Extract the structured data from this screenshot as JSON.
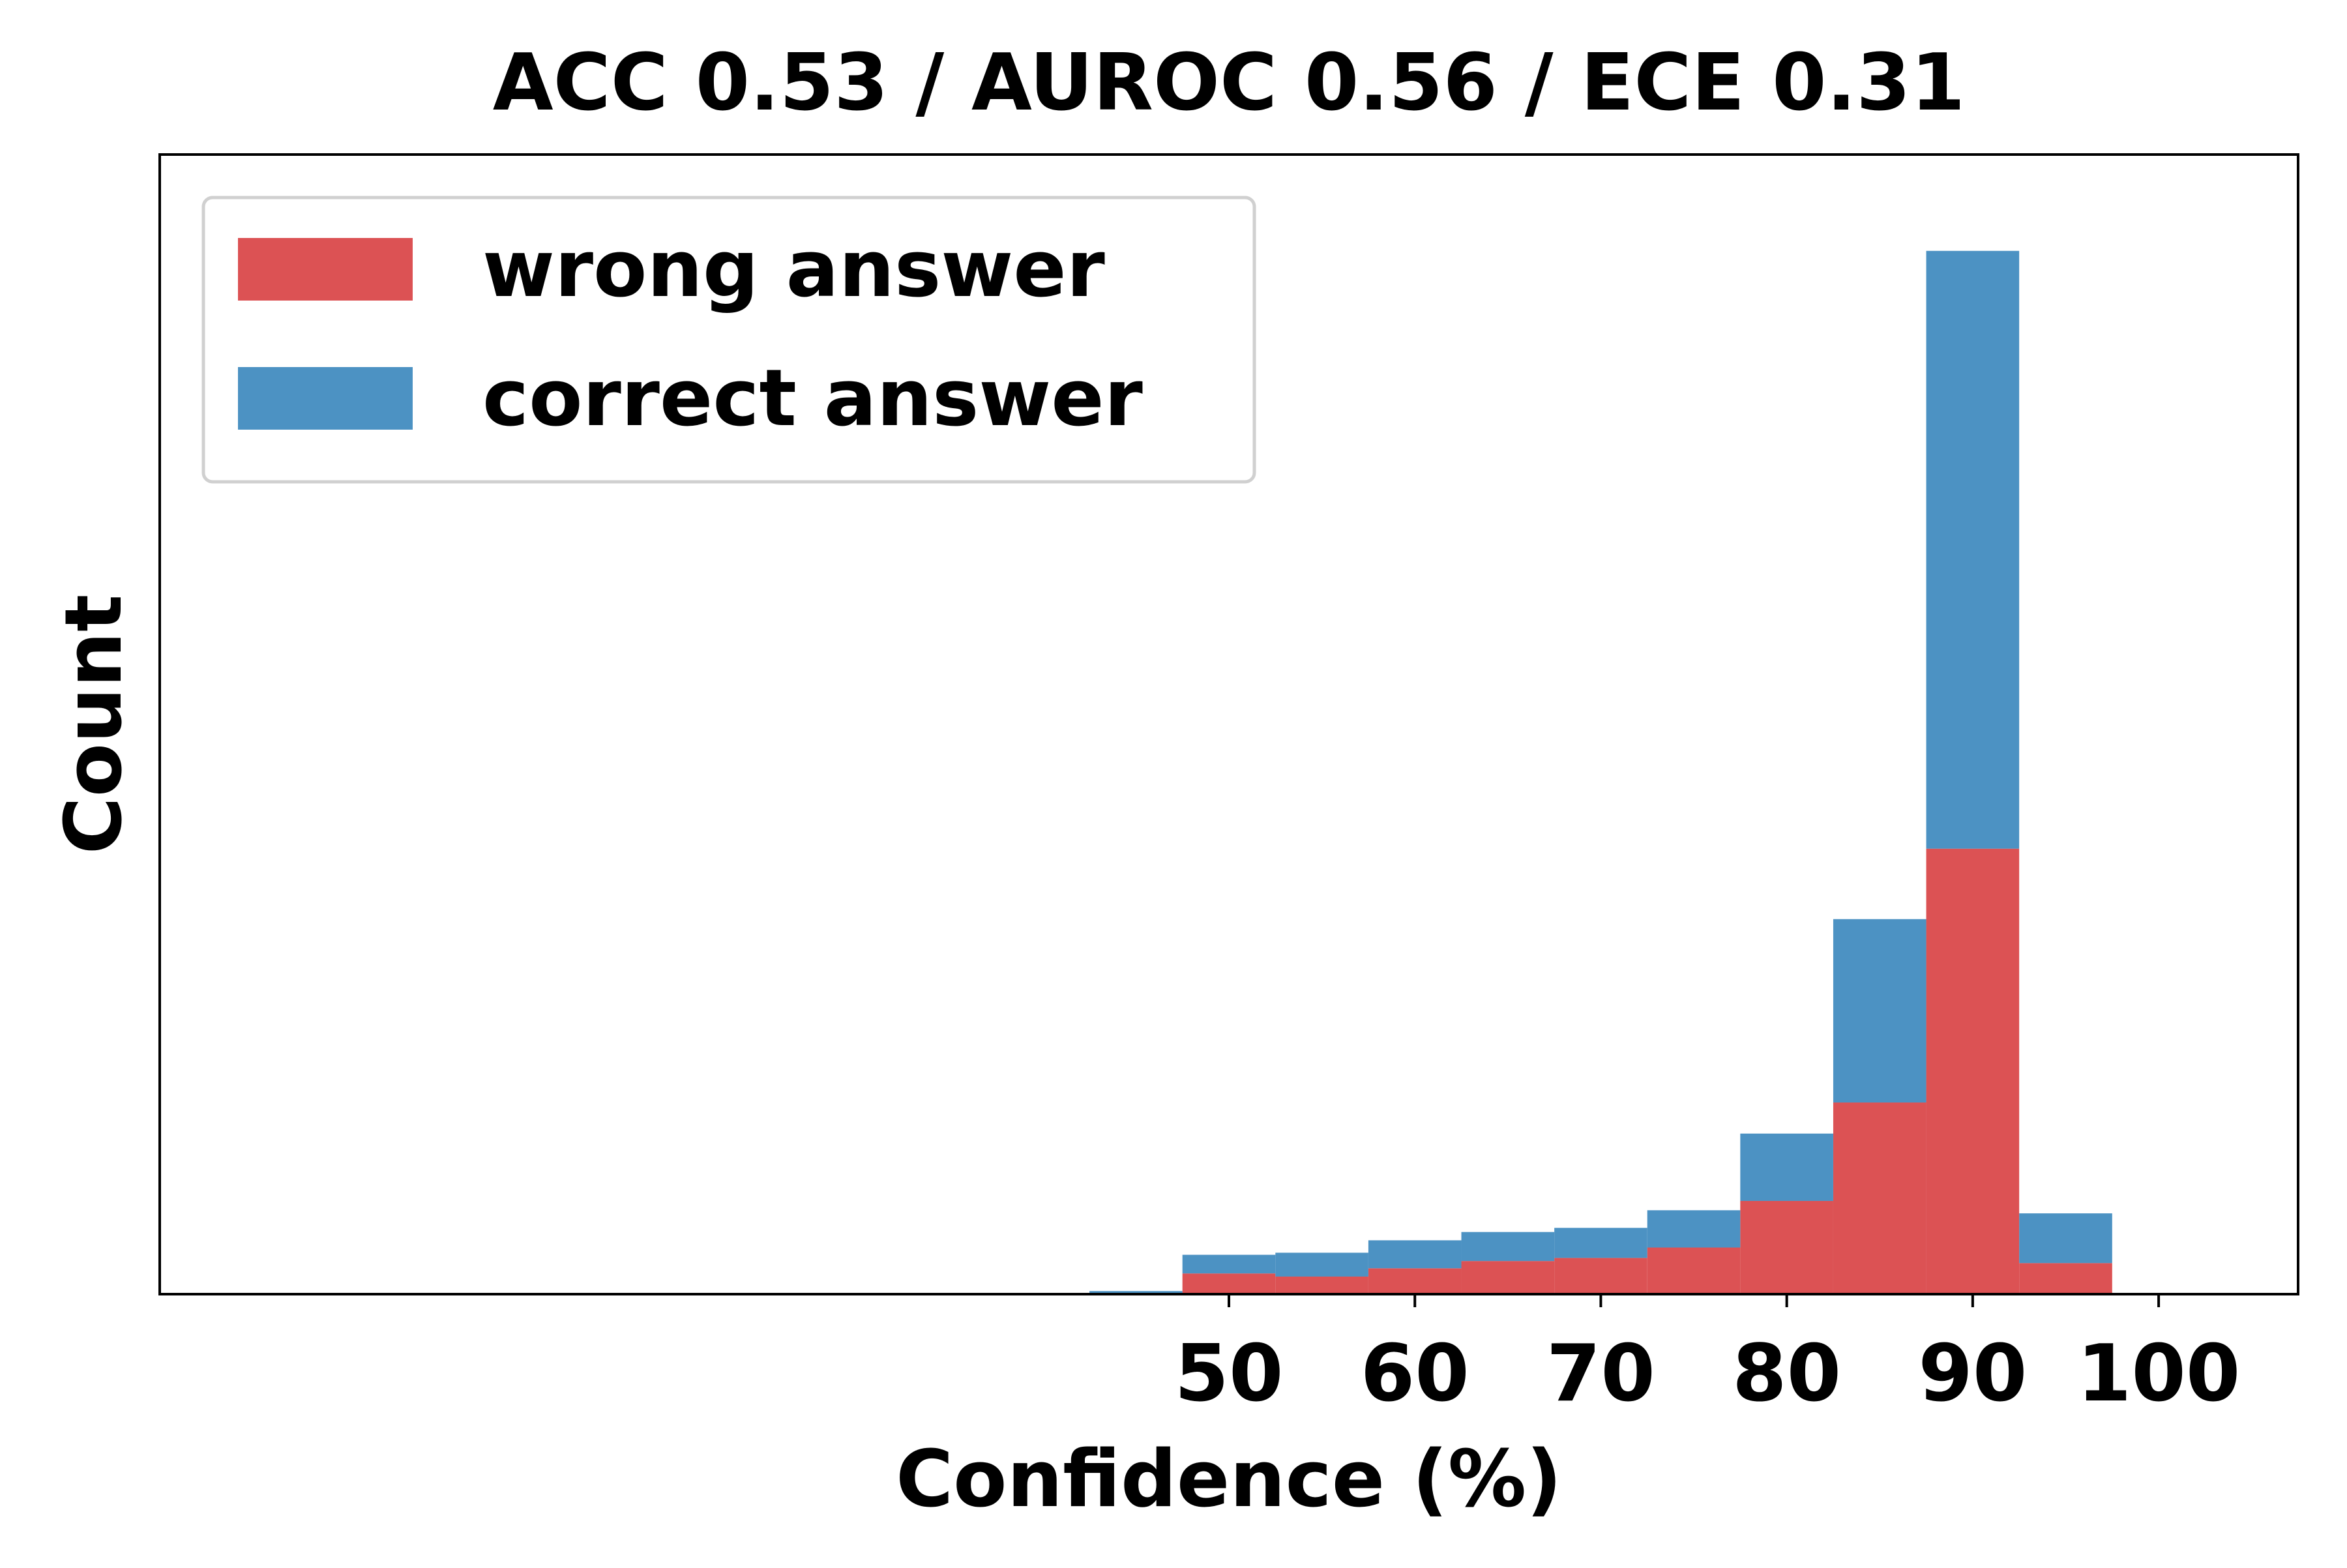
{
  "chart_data": {
    "type": "bar",
    "title": "ACC 0.53 / AUROC 0.56 / ECE 0.31",
    "xlabel": "Confidence (%)",
    "ylabel": "Count",
    "xlim": [
      -7.5,
      107.5
    ],
    "ylim": [
      0,
      110
    ],
    "x_ticks": [
      50,
      60,
      70,
      80,
      90,
      100
    ],
    "y_ticks_shown": false,
    "grid": false,
    "legend_position": "top-left",
    "bin_width": 5,
    "bin_centers": [
      45,
      50,
      55,
      60,
      65,
      70,
      75,
      80,
      85,
      90,
      95
    ],
    "series": [
      {
        "name": "wrong answer",
        "color": "#dc5254",
        "values": [
          0,
          2,
          1.7,
          2.5,
          3.2,
          3.5,
          4.5,
          9,
          18.5,
          43,
          3
        ]
      },
      {
        "name": "correct answer",
        "color": "#4c92c3",
        "values": [
          0.3,
          1.8,
          2.3,
          2.7,
          2.8,
          2.9,
          3.6,
          6.5,
          17.7,
          57.7,
          4.8
        ]
      }
    ]
  }
}
